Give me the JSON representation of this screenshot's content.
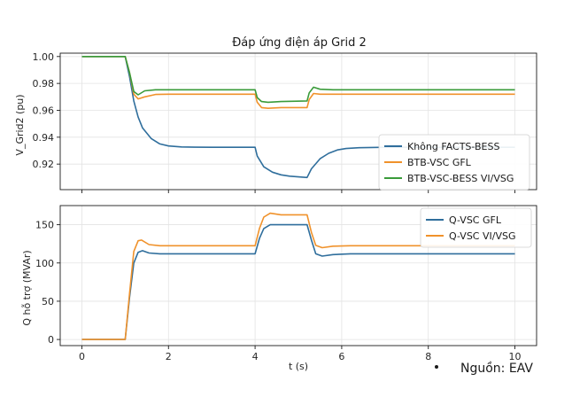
{
  "source_note": "Nguồn: EAV",
  "colors": {
    "blue": "#2f6e9c",
    "orange": "#f0922b",
    "green": "#3a9b3a"
  },
  "chart_data": [
    {
      "type": "line",
      "title": "Đáp ứng điện áp Grid 2",
      "xlabel": "",
      "ylabel": "V_Grid2 (pu)",
      "xlim": [
        -0.5,
        10.5
      ],
      "ylim": [
        0.901,
        1.0025
      ],
      "xticks": [
        0,
        2,
        4,
        6,
        8,
        10
      ],
      "yticks": [
        0.92,
        0.94,
        0.96,
        0.98,
        1.0
      ],
      "ytick_labels": [
        "0.92",
        "0.94",
        "0.96",
        "0.98",
        "1.00"
      ],
      "grid": true,
      "legend_position": "lower-right",
      "series": [
        {
          "name": "Không FACTS-BESS",
          "color": "#2f6e9c",
          "x": [
            0,
            1.0,
            1.1,
            1.2,
            1.3,
            1.4,
            1.6,
            1.8,
            2.0,
            2.3,
            2.6,
            3.0,
            4.0,
            4.05,
            4.2,
            4.4,
            4.6,
            4.8,
            5.0,
            5.2,
            5.3,
            5.5,
            5.7,
            5.9,
            6.1,
            6.4,
            7.0,
            10
          ],
          "y": [
            1.0,
            1.0,
            0.985,
            0.967,
            0.955,
            0.947,
            0.939,
            0.935,
            0.9335,
            0.9328,
            0.9326,
            0.9325,
            0.9325,
            0.926,
            0.918,
            0.914,
            0.912,
            0.911,
            0.9105,
            0.91,
            0.9165,
            0.924,
            0.928,
            0.9305,
            0.9316,
            0.9322,
            0.9325,
            0.9325
          ]
        },
        {
          "name": "BTB-VSC GFL",
          "color": "#f0922b",
          "x": [
            0,
            1.0,
            1.1,
            1.2,
            1.3,
            1.45,
            1.7,
            2.0,
            4.0,
            4.05,
            4.15,
            4.3,
            4.6,
            5.2,
            5.25,
            5.35,
            5.5,
            5.8,
            10
          ],
          "y": [
            1.0,
            1.0,
            0.988,
            0.972,
            0.9685,
            0.97,
            0.9718,
            0.972,
            0.972,
            0.966,
            0.962,
            0.9615,
            0.962,
            0.962,
            0.968,
            0.9725,
            0.972,
            0.972,
            0.972
          ]
        },
        {
          "name": "BTB-VSC-BESS VI/VSG",
          "color": "#3a9b3a",
          "x": [
            0,
            1.0,
            1.1,
            1.2,
            1.3,
            1.45,
            1.7,
            2.0,
            4.0,
            4.05,
            4.15,
            4.3,
            4.6,
            5.2,
            5.25,
            5.35,
            5.5,
            5.8,
            10
          ],
          "y": [
            1.0,
            1.0,
            0.988,
            0.974,
            0.9715,
            0.9745,
            0.9753,
            0.9753,
            0.9753,
            0.9695,
            0.9665,
            0.966,
            0.9665,
            0.967,
            0.973,
            0.9772,
            0.9757,
            0.9753,
            0.9753
          ]
        }
      ]
    },
    {
      "type": "line",
      "title": "",
      "xlabel": "t (s)",
      "ylabel": "Q hỗ trợ (MVAr)",
      "xlim": [
        -0.5,
        10.5
      ],
      "ylim": [
        -8,
        175
      ],
      "xticks": [
        0,
        2,
        4,
        6,
        8,
        10
      ],
      "xtick_labels": [
        "0",
        "2",
        "4",
        "6",
        "8",
        "10"
      ],
      "yticks": [
        0,
        50,
        100,
        150
      ],
      "grid": true,
      "legend_position": "upper-right",
      "series": [
        {
          "name": "Q-VSC GFL",
          "color": "#2f6e9c",
          "x": [
            0,
            1.0,
            1.1,
            1.2,
            1.3,
            1.4,
            1.55,
            1.8,
            2.2,
            4.0,
            4.1,
            4.2,
            4.35,
            4.6,
            5.2,
            5.3,
            5.4,
            5.55,
            5.8,
            6.2,
            10
          ],
          "y": [
            0,
            0,
            55,
            100,
            114,
            116,
            113,
            112,
            112,
            112,
            132,
            145,
            150,
            150,
            150,
            130,
            112,
            109,
            111,
            112,
            112
          ]
        },
        {
          "name": "Q-VSC VI/VSG",
          "color": "#f0922b",
          "x": [
            0,
            1.0,
            1.1,
            1.2,
            1.3,
            1.38,
            1.55,
            1.8,
            2.2,
            4.0,
            4.1,
            4.2,
            4.35,
            4.6,
            5.2,
            5.3,
            5.4,
            5.55,
            5.8,
            6.2,
            10
          ],
          "y": [
            0,
            0,
            60,
            115,
            129,
            130,
            124,
            122.5,
            122.5,
            122.5,
            145,
            160,
            165,
            163,
            163,
            140,
            123,
            120,
            122,
            122.5,
            122.5
          ]
        }
      ]
    }
  ]
}
